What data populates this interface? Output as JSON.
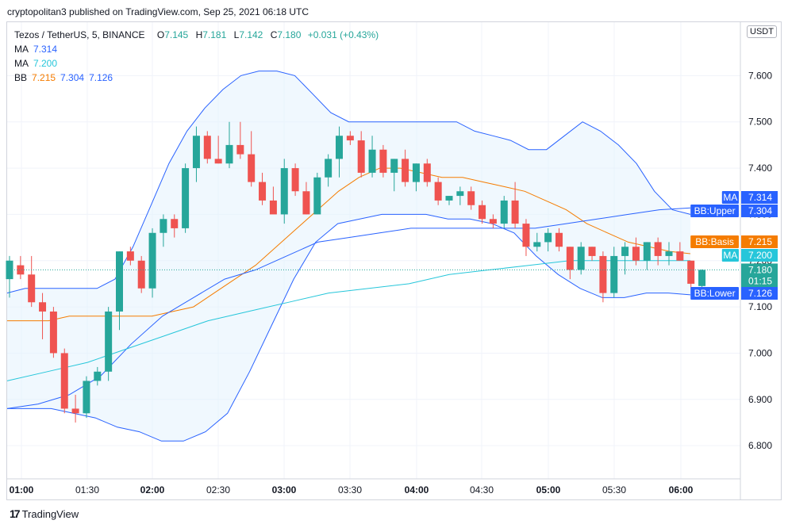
{
  "publisher": "cryptopolitan3 published on TradingView.com, Sep 25, 2021 06:18 UTC",
  "header": {
    "symbol": "Tezos / TetherUS, 5, BINANCE",
    "o_label": "O",
    "o": "7.145",
    "h_label": "H",
    "h": "7.181",
    "l_label": "L",
    "l": "7.142",
    "c_label": "C",
    "c": "7.180",
    "change": "+0.031 (+0.43%)"
  },
  "legend": {
    "ma1_label": "MA",
    "ma1": "7.314",
    "ma2_label": "MA",
    "ma2": "7.200",
    "bb_label": "BB",
    "bb_basis": "7.215",
    "bb_upper": "7.304",
    "bb_lower": "7.126"
  },
  "currency": "USDT",
  "footer": {
    "brand": "TradingView",
    "logo": "17"
  },
  "tags": {
    "ma1_name": "MA",
    "ma1_val": "7.314",
    "upper_name": "BB:Upper",
    "upper_val": "7.304",
    "basis_name": "BB:Basis",
    "basis_val": "7.215",
    "ma2_name": "MA",
    "ma2_val": "7.200",
    "last_price": "7.180",
    "countdown": "01:15",
    "lower_name": "BB:Lower",
    "lower_val": "7.126"
  },
  "colors": {
    "up": "#26a69a",
    "down": "#ef5350",
    "bb_band": "#2962ff",
    "bb_basis": "#f57c00",
    "ma1": "#2962ff",
    "ma2": "#26c6da",
    "band_fill": "#e3f2fd"
  },
  "chart_data": {
    "type": "candlestick",
    "title": "Tezos / TetherUS, 5, BINANCE",
    "ylim": [
      6.7,
      7.7
    ],
    "y_ticks": [
      "7.600",
      "7.500",
      "7.400",
      "7.300",
      "7.200",
      "7.100",
      "7.000",
      "6.900",
      "6.800"
    ],
    "x_ticks": [
      "01:00",
      "01:30",
      "02:00",
      "02:30",
      "03:00",
      "03:30",
      "04:00",
      "04:30",
      "05:00",
      "05:30",
      "06:00"
    ],
    "candles": [
      {
        "o": 7.16,
        "h": 7.21,
        "l": 7.12,
        "c": 7.2
      },
      {
        "o": 7.19,
        "h": 7.21,
        "l": 7.16,
        "c": 7.17
      },
      {
        "o": 7.17,
        "h": 7.21,
        "l": 7.1,
        "c": 7.11
      },
      {
        "o": 7.11,
        "h": 7.13,
        "l": 7.03,
        "c": 7.09
      },
      {
        "o": 7.09,
        "h": 7.1,
        "l": 6.99,
        "c": 7.0
      },
      {
        "o": 7.0,
        "h": 7.01,
        "l": 6.87,
        "c": 6.88
      },
      {
        "o": 6.88,
        "h": 6.91,
        "l": 6.85,
        "c": 6.87
      },
      {
        "o": 6.87,
        "h": 6.95,
        "l": 6.86,
        "c": 6.94
      },
      {
        "o": 6.94,
        "h": 6.97,
        "l": 6.93,
        "c": 6.96
      },
      {
        "o": 6.96,
        "h": 7.1,
        "l": 6.94,
        "c": 7.09
      },
      {
        "o": 7.09,
        "h": 7.22,
        "l": 7.05,
        "c": 7.22
      },
      {
        "o": 7.22,
        "h": 7.23,
        "l": 7.19,
        "c": 7.2
      },
      {
        "o": 7.2,
        "h": 7.21,
        "l": 7.13,
        "c": 7.14
      },
      {
        "o": 7.14,
        "h": 7.27,
        "l": 7.12,
        "c": 7.26
      },
      {
        "o": 7.26,
        "h": 7.3,
        "l": 7.23,
        "c": 7.29
      },
      {
        "o": 7.29,
        "h": 7.3,
        "l": 7.25,
        "c": 7.27
      },
      {
        "o": 7.27,
        "h": 7.41,
        "l": 7.26,
        "c": 7.4
      },
      {
        "o": 7.4,
        "h": 7.49,
        "l": 7.37,
        "c": 7.47
      },
      {
        "o": 7.47,
        "h": 7.48,
        "l": 7.41,
        "c": 7.42
      },
      {
        "o": 7.42,
        "h": 7.47,
        "l": 7.41,
        "c": 7.41
      },
      {
        "o": 7.41,
        "h": 7.5,
        "l": 7.4,
        "c": 7.45
      },
      {
        "o": 7.45,
        "h": 7.5,
        "l": 7.42,
        "c": 7.43
      },
      {
        "o": 7.43,
        "h": 7.48,
        "l": 7.36,
        "c": 7.37
      },
      {
        "o": 7.37,
        "h": 7.39,
        "l": 7.32,
        "c": 7.33
      },
      {
        "o": 7.33,
        "h": 7.36,
        "l": 7.31,
        "c": 7.3
      },
      {
        "o": 7.3,
        "h": 7.42,
        "l": 7.28,
        "c": 7.4
      },
      {
        "o": 7.4,
        "h": 7.41,
        "l": 7.34,
        "c": 7.35
      },
      {
        "o": 7.35,
        "h": 7.37,
        "l": 7.3,
        "c": 7.3
      },
      {
        "o": 7.3,
        "h": 7.39,
        "l": 7.3,
        "c": 7.38
      },
      {
        "o": 7.38,
        "h": 7.43,
        "l": 7.36,
        "c": 7.42
      },
      {
        "o": 7.42,
        "h": 7.49,
        "l": 7.38,
        "c": 7.47
      },
      {
        "o": 7.47,
        "h": 7.48,
        "l": 7.45,
        "c": 7.46
      },
      {
        "o": 7.46,
        "h": 7.48,
        "l": 7.38,
        "c": 7.39
      },
      {
        "o": 7.39,
        "h": 7.47,
        "l": 7.38,
        "c": 7.44
      },
      {
        "o": 7.44,
        "h": 7.45,
        "l": 7.38,
        "c": 7.39
      },
      {
        "o": 7.39,
        "h": 7.42,
        "l": 7.35,
        "c": 7.42
      },
      {
        "o": 7.42,
        "h": 7.44,
        "l": 7.36,
        "c": 7.37
      },
      {
        "o": 7.37,
        "h": 7.41,
        "l": 7.35,
        "c": 7.41
      },
      {
        "o": 7.41,
        "h": 7.42,
        "l": 7.36,
        "c": 7.37
      },
      {
        "o": 7.37,
        "h": 7.38,
        "l": 7.32,
        "c": 7.33
      },
      {
        "o": 7.33,
        "h": 7.34,
        "l": 7.32,
        "c": 7.34
      },
      {
        "o": 7.34,
        "h": 7.36,
        "l": 7.32,
        "c": 7.35
      },
      {
        "o": 7.35,
        "h": 7.36,
        "l": 7.31,
        "c": 7.32
      },
      {
        "o": 7.32,
        "h": 7.33,
        "l": 7.28,
        "c": 7.29
      },
      {
        "o": 7.29,
        "h": 7.3,
        "l": 7.27,
        "c": 7.28
      },
      {
        "o": 7.28,
        "h": 7.34,
        "l": 7.27,
        "c": 7.33
      },
      {
        "o": 7.33,
        "h": 7.37,
        "l": 7.27,
        "c": 7.28
      },
      {
        "o": 7.28,
        "h": 7.29,
        "l": 7.21,
        "c": 7.23
      },
      {
        "o": 7.23,
        "h": 7.26,
        "l": 7.22,
        "c": 7.24
      },
      {
        "o": 7.24,
        "h": 7.27,
        "l": 7.22,
        "c": 7.26
      },
      {
        "o": 7.26,
        "h": 7.27,
        "l": 7.22,
        "c": 7.23
      },
      {
        "o": 7.23,
        "h": 7.23,
        "l": 7.16,
        "c": 7.18
      },
      {
        "o": 7.18,
        "h": 7.24,
        "l": 7.17,
        "c": 7.23
      },
      {
        "o": 7.23,
        "h": 7.23,
        "l": 7.2,
        "c": 7.21
      },
      {
        "o": 7.21,
        "h": 7.22,
        "l": 7.11,
        "c": 7.13
      },
      {
        "o": 7.13,
        "h": 7.23,
        "l": 7.12,
        "c": 7.21
      },
      {
        "o": 7.21,
        "h": 7.24,
        "l": 7.17,
        "c": 7.23
      },
      {
        "o": 7.23,
        "h": 7.25,
        "l": 7.19,
        "c": 7.2
      },
      {
        "o": 7.2,
        "h": 7.24,
        "l": 7.18,
        "c": 7.24
      },
      {
        "o": 7.24,
        "h": 7.25,
        "l": 7.19,
        "c": 7.21
      },
      {
        "o": 7.21,
        "h": 7.24,
        "l": 7.19,
        "c": 7.22
      },
      {
        "o": 7.22,
        "h": 7.24,
        "l": 7.2,
        "c": 7.2
      },
      {
        "o": 7.2,
        "h": 7.2,
        "l": 7.14,
        "c": 7.15
      },
      {
        "o": 7.145,
        "h": 7.181,
        "l": 7.142,
        "c": 7.18
      }
    ],
    "series": [
      {
        "name": "BB:Upper",
        "values": [
          7.13,
          7.14,
          7.14,
          7.14,
          7.14,
          7.14,
          7.16,
          7.23,
          7.32,
          7.41,
          7.48,
          7.53,
          7.57,
          7.6,
          7.61,
          7.61,
          7.6,
          7.56,
          7.52,
          7.5,
          7.5,
          7.5,
          7.5,
          7.5,
          7.5,
          7.5,
          7.48,
          7.47,
          7.46,
          7.44,
          7.44,
          7.47,
          7.5,
          7.48,
          7.45,
          7.41,
          7.35,
          7.31,
          7.3
        ]
      },
      {
        "name": "BB:Basis",
        "values": [
          7.07,
          7.07,
          7.07,
          7.08,
          7.08,
          7.08,
          7.08,
          7.08,
          7.09,
          7.1,
          7.13,
          7.16,
          7.19,
          7.23,
          7.27,
          7.31,
          7.35,
          7.38,
          7.4,
          7.4,
          7.39,
          7.38,
          7.38,
          7.37,
          7.36,
          7.35,
          7.33,
          7.31,
          7.28,
          7.26,
          7.24,
          7.23,
          7.22,
          7.215
        ]
      },
      {
        "name": "BB:Lower",
        "values": [
          6.88,
          6.88,
          6.88,
          6.87,
          6.86,
          6.84,
          6.83,
          6.81,
          6.81,
          6.83,
          6.87,
          6.96,
          7.06,
          7.16,
          7.24,
          7.28,
          7.29,
          7.3,
          7.3,
          7.3,
          7.29,
          7.29,
          7.28,
          7.26,
          7.21,
          7.17,
          7.14,
          7.12,
          7.12,
          7.13,
          7.13,
          7.126
        ]
      },
      {
        "name": "MA 7.314",
        "values": [
          6.88,
          6.89,
          6.91,
          6.95,
          7.02,
          7.08,
          7.12,
          7.16,
          7.18,
          7.21,
          7.24,
          7.25,
          7.26,
          7.27,
          7.27,
          7.27,
          7.27,
          7.27,
          7.28,
          7.29,
          7.3,
          7.31,
          7.314
        ]
      },
      {
        "name": "MA 7.200",
        "values": [
          6.94,
          6.96,
          6.98,
          7.01,
          7.04,
          7.07,
          7.09,
          7.11,
          7.13,
          7.14,
          7.15,
          7.17,
          7.18,
          7.19,
          7.2,
          7.2,
          7.2,
          7.2
        ]
      }
    ]
  }
}
